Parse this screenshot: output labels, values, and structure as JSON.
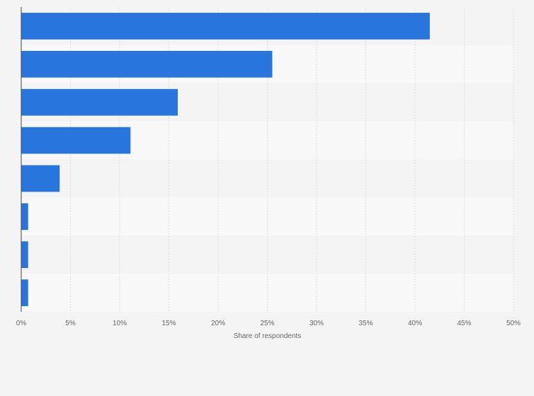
{
  "chart_data": {
    "type": "bar",
    "orientation": "horizontal",
    "categories": [
      "",
      "",
      "",
      "",
      "",
      "",
      "",
      ""
    ],
    "series": [
      {
        "values": [
          41.5,
          25.5,
          15.9,
          11.1,
          3.9,
          0.7,
          0.7,
          0.7
        ]
      }
    ],
    "title": "",
    "xlabel": "Share of respondents",
    "ylabel": "",
    "xlim": [
      0,
      50
    ],
    "x_ticks": [
      "0%",
      "5%",
      "10%",
      "15%",
      "20%",
      "25%",
      "30%",
      "35%",
      "40%",
      "45%",
      "50%"
    ],
    "grid": true,
    "legend": "none",
    "colors": {
      "bar": "#2876dd",
      "band_dark": "#f4f4f4",
      "band_light": "#f8f8f8",
      "grid": "#dddddd",
      "axis": "#444444",
      "text": "#666666",
      "background": "#f4f4f4"
    }
  }
}
